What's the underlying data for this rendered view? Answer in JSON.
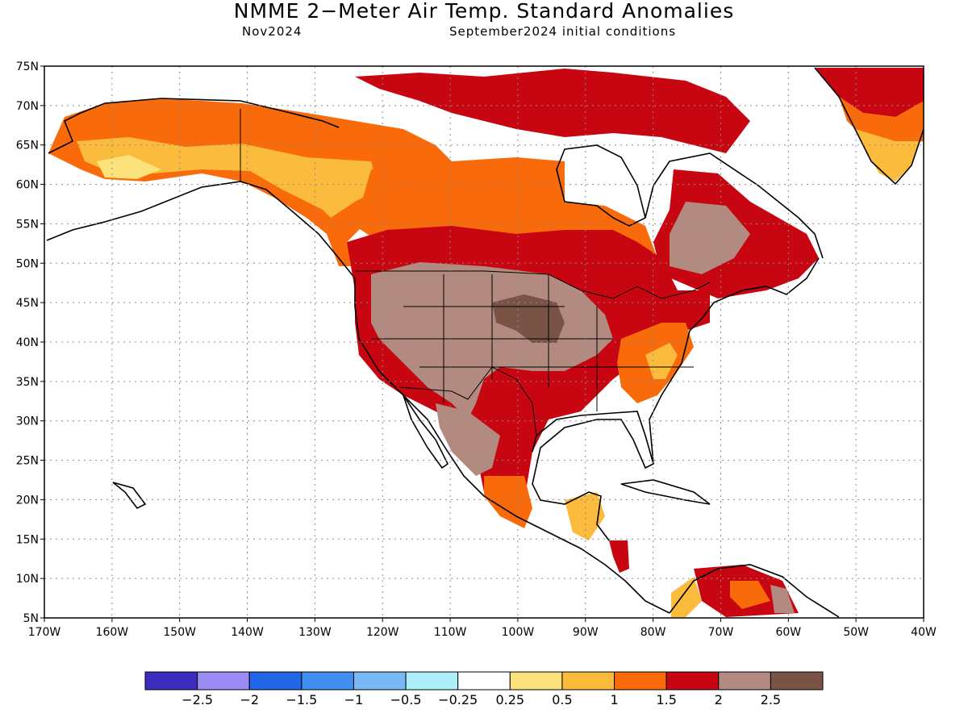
{
  "title": "NMME 2−Meter Air Temp. Standard Anomalies",
  "target_month": "Nov2024",
  "init_conditions": "September2024 initial conditions",
  "map": {
    "lat_labels": [
      "75N",
      "70N",
      "65N",
      "60N",
      "55N",
      "50N",
      "45N",
      "40N",
      "35N",
      "30N",
      "25N",
      "20N",
      "15N",
      "10N",
      "5N"
    ],
    "lon_labels": [
      "170W",
      "160W",
      "150W",
      "140W",
      "130W",
      "120W",
      "110W",
      "100W",
      "90W",
      "80W",
      "70W",
      "60W",
      "50W",
      "40W"
    ],
    "lat_range": [
      5,
      75
    ],
    "lon_range": [
      -170,
      -40
    ],
    "grid": "dotted"
  },
  "colorbar": {
    "colors": [
      "#3c2dbf",
      "#9b8cf5",
      "#2166e6",
      "#3f8ef0",
      "#78b8f5",
      "#aeeefa",
      "#ffffff",
      "#fbe27a",
      "#fbbb3c",
      "#f86a0a",
      "#c80612",
      "#b38a80",
      "#7a5347"
    ],
    "labels": [
      "−2.5",
      "−2",
      "−1.5",
      "−1",
      "−0.5",
      "−0.25",
      "0.25",
      "0.5",
      "1",
      "1.5",
      "2",
      "2.5"
    ]
  },
  "anomaly_regions": [
    {
      "name": "alaska-interior",
      "level": "0.5–1"
    },
    {
      "name": "northern-canada",
      "level": "1–1.5"
    },
    {
      "name": "canadian-arctic",
      "level": "1.5–2"
    },
    {
      "name": "northern-plains-core",
      "level": ">2.5"
    },
    {
      "name": "western-us",
      "level": "2–2.5"
    },
    {
      "name": "southeast-us",
      "level": "1–1.5"
    },
    {
      "name": "greenland-south",
      "level": "0.5–1"
    }
  ]
}
